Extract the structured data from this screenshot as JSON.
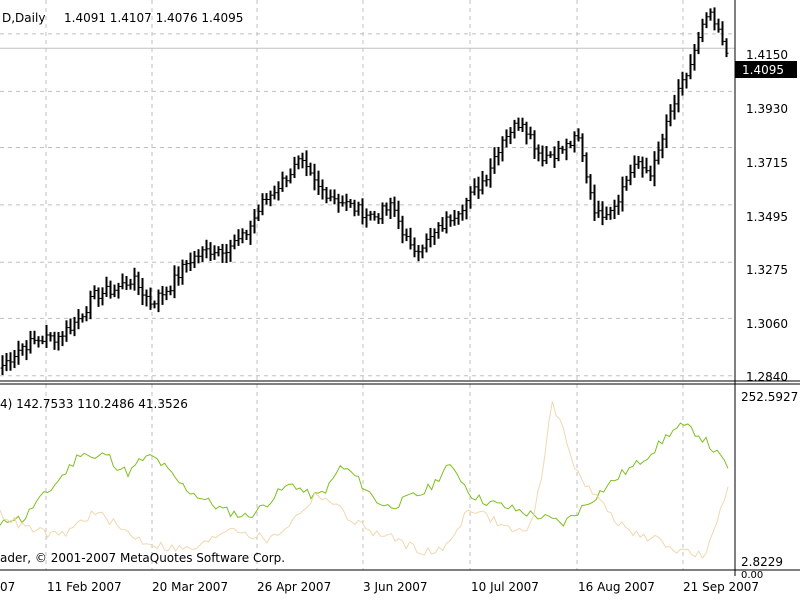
{
  "header": {
    "symbol_text": "D,Daily",
    "ohlc_text": "1.4091 1.4107 1.4076 1.4095"
  },
  "indicator": {
    "values_text": "4) 142.7533 110.2486 41.3526",
    "max_label": "252.5927",
    "min_label": "2.8229",
    "zero_label": "0.00",
    "copyright": "ader, © 2001-2007 MetaQuotes Software Corp."
  },
  "price_axis": {
    "ticks": [
      "1.4150",
      "1.3930",
      "1.3715",
      "1.3495",
      "1.3275",
      "1.3060",
      "1.2840"
    ],
    "current_label": "1.4095"
  },
  "time_axis": {
    "labels": [
      "07",
      "11 Feb 2007",
      "20 Mar 2007",
      "26 Apr 2007",
      "3 Jun 2007",
      "10 Jul 2007",
      "16 Aug 2007",
      "21 Sep 2007"
    ]
  },
  "colors": {
    "bars": "#000000",
    "grid": "#c0c0c0",
    "series_green": "#7fbf1f",
    "series_tan": "#f0d8b0",
    "current_price_bg": "#000000"
  },
  "chart_data": [
    {
      "type": "ohlc",
      "timeframe": "Daily",
      "ylim": [
        1.282,
        1.428
      ],
      "y_ticks": [
        1.415,
        1.393,
        1.3715,
        1.3495,
        1.3275,
        1.306,
        1.284
      ],
      "current_price": 1.4095,
      "close_path": [
        [
          "2007-01-05",
          1.288
        ],
        [
          "2007-01-12",
          1.295
        ],
        [
          "2007-01-19",
          1.298
        ],
        [
          "2007-01-26",
          1.299
        ],
        [
          "2007-02-02",
          1.305
        ],
        [
          "2007-02-09",
          1.315
        ],
        [
          "2007-02-16",
          1.317
        ],
        [
          "2007-02-23",
          1.321
        ],
        [
          "2007-03-02",
          1.312
        ],
        [
          "2007-03-09",
          1.318
        ],
        [
          "2007-03-16",
          1.328
        ],
        [
          "2007-03-23",
          1.332
        ],
        [
          "2007-03-30",
          1.333
        ],
        [
          "2007-04-06",
          1.337
        ],
        [
          "2007-04-13",
          1.35
        ],
        [
          "2007-04-20",
          1.358
        ],
        [
          "2007-04-27",
          1.366
        ],
        [
          "2007-05-04",
          1.356
        ],
        [
          "2007-05-11",
          1.352
        ],
        [
          "2007-05-18",
          1.348
        ],
        [
          "2007-05-25",
          1.345
        ],
        [
          "2007-06-01",
          1.349
        ],
        [
          "2007-06-08",
          1.332
        ],
        [
          "2007-06-15",
          1.336
        ],
        [
          "2007-06-22",
          1.344
        ],
        [
          "2007-06-29",
          1.351
        ],
        [
          "2007-07-06",
          1.36
        ],
        [
          "2007-07-13",
          1.376
        ],
        [
          "2007-07-20",
          1.382
        ],
        [
          "2007-07-27",
          1.368
        ],
        [
          "2007-08-03",
          1.37
        ],
        [
          "2007-08-10",
          1.375
        ],
        [
          "2007-08-17",
          1.345
        ],
        [
          "2007-08-24",
          1.35
        ],
        [
          "2007-08-31",
          1.365
        ],
        [
          "2007-09-07",
          1.362
        ],
        [
          "2007-09-14",
          1.385
        ],
        [
          "2007-09-21",
          1.402
        ],
        [
          "2007-09-28",
          1.423
        ],
        [
          "2007-10-02",
          1.4095
        ]
      ]
    },
    {
      "type": "line",
      "ylim": [
        2.8229,
        252.5927
      ],
      "series": [
        {
          "color": "#7fbf1f",
          "values": [
            60,
            75,
            70,
            95,
            110,
            130,
            150,
            175,
            160,
            170,
            150,
            140,
            160,
            165,
            150,
            130,
            115,
            105,
            95,
            85,
            80,
            75,
            85,
            100,
            115,
            125,
            110,
            105,
            120,
            150,
            140,
            120,
            100,
            90,
            95,
            105,
            110,
            125,
            150,
            140,
            110,
            100,
            95,
            90,
            85,
            80,
            75,
            70,
            65,
            80,
            95,
            110,
            125,
            140,
            150,
            165,
            180,
            200,
            210,
            205,
            190,
            170,
            150
          ]
        },
        {
          "color": "#f0d8b0",
          "values": [
            80,
            70,
            60,
            55,
            50,
            45,
            55,
            70,
            80,
            75,
            60,
            50,
            40,
            35,
            30,
            28,
            26,
            30,
            40,
            55,
            60,
            50,
            45,
            40,
            55,
            70,
            90,
            110,
            100,
            85,
            70,
            60,
            50,
            45,
            40,
            30,
            25,
            20,
            30,
            60,
            90,
            80,
            70,
            60,
            55,
            50,
            120,
            250,
            200,
            150,
            120,
            100,
            80,
            60,
            50,
            45,
            40,
            30,
            25,
            20,
            15,
            60,
            120
          ]
        }
      ]
    }
  ]
}
